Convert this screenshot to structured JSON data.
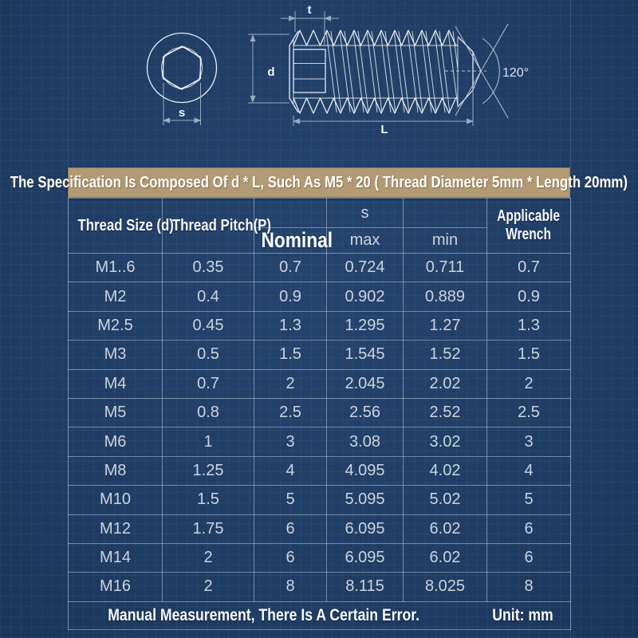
{
  "diagram": {
    "labels": {
      "socket_width": "s",
      "socket_depth": "t",
      "diameter": "d",
      "length": "L",
      "point_angle": "120°"
    }
  },
  "banner": {
    "text": "The Specification Is Composed Of d * L, Such As M5 * 20 ( Thread Diameter 5mm * Length 20mm)"
  },
  "table": {
    "headers": {
      "thread_size": "Thread Size (d)",
      "thread_pitch": "Thread Pitch(P)",
      "nominal": "Nominal",
      "s_group": "s",
      "max": "max",
      "min": "min",
      "applicable_wrench": "Applicable Wrench"
    },
    "rows": [
      {
        "size": "M1..6",
        "pitch": "0.35",
        "nominal": "0.7",
        "max": "0.724",
        "min": "0.711",
        "wrench": "0.7"
      },
      {
        "size": "M2",
        "pitch": "0.4",
        "nominal": "0.9",
        "max": "0.902",
        "min": "0.889",
        "wrench": "0.9"
      },
      {
        "size": "M2.5",
        "pitch": "0.45",
        "nominal": "1.3",
        "max": "1.295",
        "min": "1.27",
        "wrench": "1.3"
      },
      {
        "size": "M3",
        "pitch": "0.5",
        "nominal": "1.5",
        "max": "1.545",
        "min": "1.52",
        "wrench": "1.5"
      },
      {
        "size": "M4",
        "pitch": "0.7",
        "nominal": "2",
        "max": "2.045",
        "min": "2.02",
        "wrench": "2"
      },
      {
        "size": "M5",
        "pitch": "0.8",
        "nominal": "2.5",
        "max": "2.56",
        "min": "2.52",
        "wrench": "2.5"
      },
      {
        "size": "M6",
        "pitch": "1",
        "nominal": "3",
        "max": "3.08",
        "min": "3.02",
        "wrench": "3"
      },
      {
        "size": "M8",
        "pitch": "1.25",
        "nominal": "4",
        "max": "4.095",
        "min": "4.02",
        "wrench": "4"
      },
      {
        "size": "M10",
        "pitch": "1.5",
        "nominal": "5",
        "max": "5.095",
        "min": "5.02",
        "wrench": "5"
      },
      {
        "size": "M12",
        "pitch": "1.75",
        "nominal": "6",
        "max": "6.095",
        "min": "6.02",
        "wrench": "6"
      },
      {
        "size": "M14",
        "pitch": "2",
        "nominal": "6",
        "max": "6.095",
        "min": "6.02",
        "wrench": "6"
      },
      {
        "size": "M16",
        "pitch": "2",
        "nominal": "8",
        "max": "8.115",
        "min": "8.025",
        "wrench": "8"
      }
    ]
  },
  "footer": {
    "note": "Manual Measurement, There Is A Certain Error.",
    "unit": "Unit: mm"
  },
  "colors": {
    "background": "#20406a",
    "banner_bg": "#b29a75",
    "table_line": "#bac8dc",
    "text_light": "#ccd4df",
    "text_white": "#f5f7fa"
  }
}
